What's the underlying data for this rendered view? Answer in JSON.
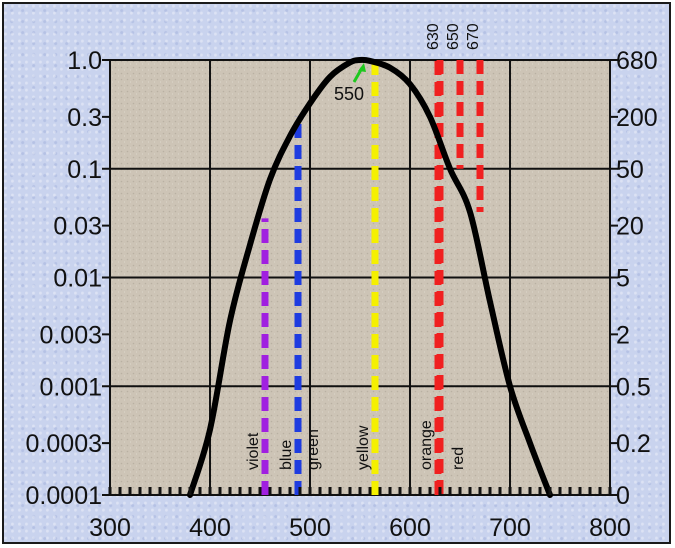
{
  "chart_data": {
    "type": "line",
    "x_axis": {
      "range": [
        300,
        800
      ],
      "ticks": [
        300,
        400,
        500,
        600,
        700,
        800
      ],
      "tick_labels": [
        "300",
        "400",
        "500",
        "600",
        "700",
        "800"
      ]
    },
    "left_axis": {
      "scale": "log",
      "range": [
        0.0001,
        1.0
      ],
      "ticks": [
        1.0,
        0.3,
        0.1,
        0.03,
        0.01,
        0.003,
        0.001,
        0.0003,
        0.0001
      ],
      "tick_labels": [
        "1.0",
        "0.3",
        "0.1",
        "0.03",
        "0.01",
        "0.003",
        "0.001",
        "0.0003",
        "0.0001"
      ]
    },
    "right_axis": {
      "tick_labels": [
        "680",
        "200",
        "50",
        "20",
        "5",
        "2",
        "0.5",
        "0.2",
        "0"
      ]
    },
    "grid": true,
    "curve": {
      "color": "#000000",
      "points": [
        [
          380,
          0.0001
        ],
        [
          400,
          0.0004
        ],
        [
          420,
          0.004
        ],
        [
          440,
          0.02
        ],
        [
          460,
          0.08
        ],
        [
          480,
          0.2
        ],
        [
          500,
          0.4
        ],
        [
          520,
          0.7
        ],
        [
          540,
          0.95
        ],
        [
          550,
          1.0
        ],
        [
          560,
          0.98
        ],
        [
          580,
          0.85
        ],
        [
          600,
          0.6
        ],
        [
          620,
          0.3
        ],
        [
          640,
          0.1
        ],
        [
          660,
          0.04
        ],
        [
          680,
          0.006
        ],
        [
          700,
          0.001
        ],
        [
          720,
          0.0003
        ],
        [
          740,
          0.0001
        ]
      ]
    },
    "peak_annotation": {
      "label": "550",
      "x": 550,
      "color": "#1ec81e"
    },
    "wavelength_lines": [
      {
        "x": 455,
        "top": 0.035,
        "color": "#a020e0",
        "label": "violet"
      },
      {
        "x": 488,
        "top": 0.3,
        "color": "#1e3ce0",
        "label": "blue"
      },
      {
        "x": 515,
        "top": null,
        "color": null,
        "label": "green"
      },
      {
        "x": 565,
        "top": 1.0,
        "color": "#f5f000",
        "label": "yellow"
      },
      {
        "x": 628,
        "top": 1.0,
        "color": "#f02020",
        "label": "orange"
      },
      {
        "x": 660,
        "top": null,
        "color": null,
        "label": "red"
      }
    ],
    "top_red_lines": [
      {
        "x": 630,
        "label": "630",
        "bottom": 0.0001
      },
      {
        "x": 650,
        "label": "650",
        "bottom": 0.1
      },
      {
        "x": 670,
        "label": "670",
        "bottom": 0.04
      }
    ]
  }
}
